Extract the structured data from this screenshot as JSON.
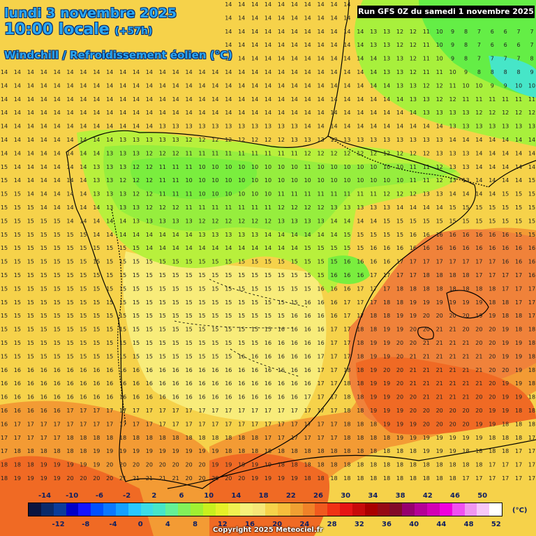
{
  "title_date": "lundi 3 novembre 2025",
  "title_time": "10:00 locale",
  "title_lead": "(+57h)",
  "title_param": "Windchill / Refroidissement éolien (°C)",
  "run_info": "Run GFS 0Z du samedi 1 novembre 2025",
  "copyright": "Copyright 2025 Meteociel.fr",
  "legend": {
    "unit": "(°C)",
    "top_ticks": [
      "-14",
      "-10",
      "-6",
      "-2",
      "2",
      "6",
      "10",
      "14",
      "18",
      "22",
      "26",
      "30",
      "34",
      "38",
      "42",
      "46",
      "50"
    ],
    "bottom_ticks": [
      "-12",
      "-8",
      "-4",
      "0",
      "4",
      "8",
      "12",
      "16",
      "20",
      "24",
      "28",
      "32",
      "36",
      "40",
      "44",
      "48",
      "52"
    ],
    "colors": [
      "#0a1440",
      "#0a2a6a",
      "#0a3c9a",
      "#0000c8",
      "#1414ff",
      "#0050ff",
      "#0a78ff",
      "#14a0ff",
      "#28c8ff",
      "#3cdce6",
      "#46e6c8",
      "#64f096",
      "#82f05a",
      "#a0f032",
      "#c8f01e",
      "#e6f028",
      "#f0f050",
      "#f6f07a",
      "#f6e678",
      "#f6d24a",
      "#f6be3c",
      "#f0a032",
      "#f08228",
      "#f05a1e",
      "#f03214",
      "#e61414",
      "#c80a0a",
      "#aa0000",
      "#960a14",
      "#820a28",
      "#96006e",
      "#b40096",
      "#d200b4",
      "#f000dc",
      "#f050f0",
      "#f096f0",
      "#f8c8f8",
      "#ffffff"
    ]
  },
  "colors": {
    "title_fill": "#2aa8f2",
    "title_outline": "#0a2a6a",
    "land_outline": "#000000",
    "sea_warm": "#f06a24",
    "green_cold": "#7aee3e"
  }
}
